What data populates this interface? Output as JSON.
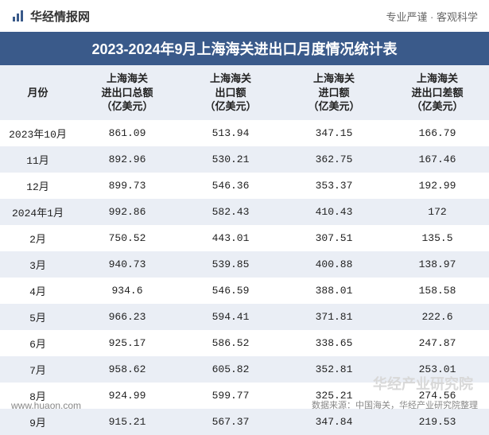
{
  "header": {
    "site_name": "华经情报网",
    "tagline": "专业严谨 · 客观科学"
  },
  "title": "2023-2024年9月上海海关进出口月度情况统计表",
  "table": {
    "type": "table",
    "background_odd": "#ffffff",
    "background_even": "#eaeef5",
    "header_bg": "#eaeef5",
    "title_bg": "#3a5a8a",
    "title_color": "#ffffff",
    "text_color": "#222222",
    "font_size": 13,
    "columns": [
      {
        "label": "月份",
        "width": 95,
        "align": "center"
      },
      {
        "label_line1": "上海海关",
        "label_line2": "进出口总额",
        "label_line3": "（亿美元）",
        "align": "center"
      },
      {
        "label_line1": "上海海关",
        "label_line2": "出口额",
        "label_line3": "（亿美元）",
        "align": "center"
      },
      {
        "label_line1": "上海海关",
        "label_line2": "进口额",
        "label_line3": "（亿美元）",
        "align": "center"
      },
      {
        "label_line1": "上海海关",
        "label_line2": "进出口差额",
        "label_line3": "（亿美元）",
        "align": "center"
      }
    ],
    "rows": [
      {
        "month": "2023年10月",
        "total": "861.09",
        "export": "513.94",
        "import": "347.15",
        "balance": "166.79"
      },
      {
        "month": "11月",
        "total": "892.96",
        "export": "530.21",
        "import": "362.75",
        "balance": "167.46"
      },
      {
        "month": "12月",
        "total": "899.73",
        "export": "546.36",
        "import": "353.37",
        "balance": "192.99"
      },
      {
        "month": "2024年1月",
        "total": "992.86",
        "export": "582.43",
        "import": "410.43",
        "balance": "172"
      },
      {
        "month": "2月",
        "total": "750.52",
        "export": "443.01",
        "import": "307.51",
        "balance": "135.5"
      },
      {
        "month": "3月",
        "total": "940.73",
        "export": "539.85",
        "import": "400.88",
        "balance": "138.97"
      },
      {
        "month": "4月",
        "total": "934.6",
        "export": "546.59",
        "import": "388.01",
        "balance": "158.58"
      },
      {
        "month": "5月",
        "total": "966.23",
        "export": "594.41",
        "import": "371.81",
        "balance": "222.6"
      },
      {
        "month": "6月",
        "total": "925.17",
        "export": "586.52",
        "import": "338.65",
        "balance": "247.87"
      },
      {
        "month": "7月",
        "total": "958.62",
        "export": "605.82",
        "import": "352.81",
        "balance": "253.01"
      },
      {
        "month": "8月",
        "total": "924.99",
        "export": "599.77",
        "import": "325.21",
        "balance": "274.56"
      },
      {
        "month": "9月",
        "total": "915.21",
        "export": "567.37",
        "import": "347.84",
        "balance": "219.53"
      }
    ]
  },
  "footer": {
    "source": "数据来源：中国海关，华经产业研究院整理",
    "url": "www.huaon.com",
    "watermark": "华经产业研究院"
  }
}
